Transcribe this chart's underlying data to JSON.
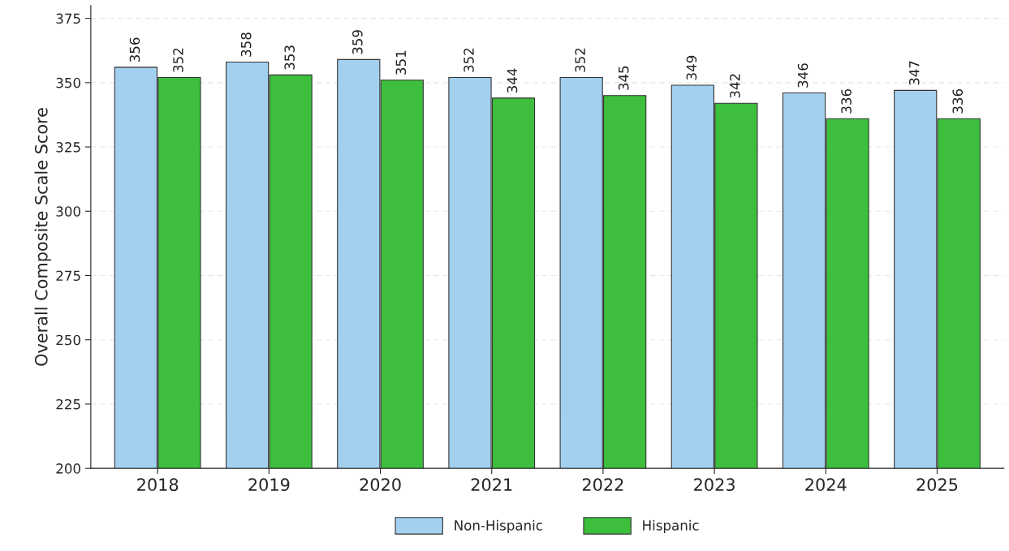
{
  "chart_data": {
    "type": "bar",
    "ylabel": "Overall Composite Scale Score",
    "categories": [
      "2018",
      "2019",
      "2020",
      "2021",
      "2022",
      "2023",
      "2024",
      "2025"
    ],
    "series": [
      {
        "name": "Non-Hispanic",
        "color": "#a3d0ef",
        "values": [
          356,
          358,
          359,
          352,
          352,
          349,
          346,
          347
        ]
      },
      {
        "name": "Hispanic",
        "color": "#3dbf3d",
        "values": [
          352,
          353,
          351,
          344,
          345,
          342,
          336,
          336
        ]
      }
    ],
    "ylim": [
      200,
      380
    ],
    "yticks": [
      200,
      225,
      250,
      275,
      300,
      325,
      350,
      375
    ],
    "grid": "y",
    "legend": "bottom",
    "data_labels": true
  }
}
